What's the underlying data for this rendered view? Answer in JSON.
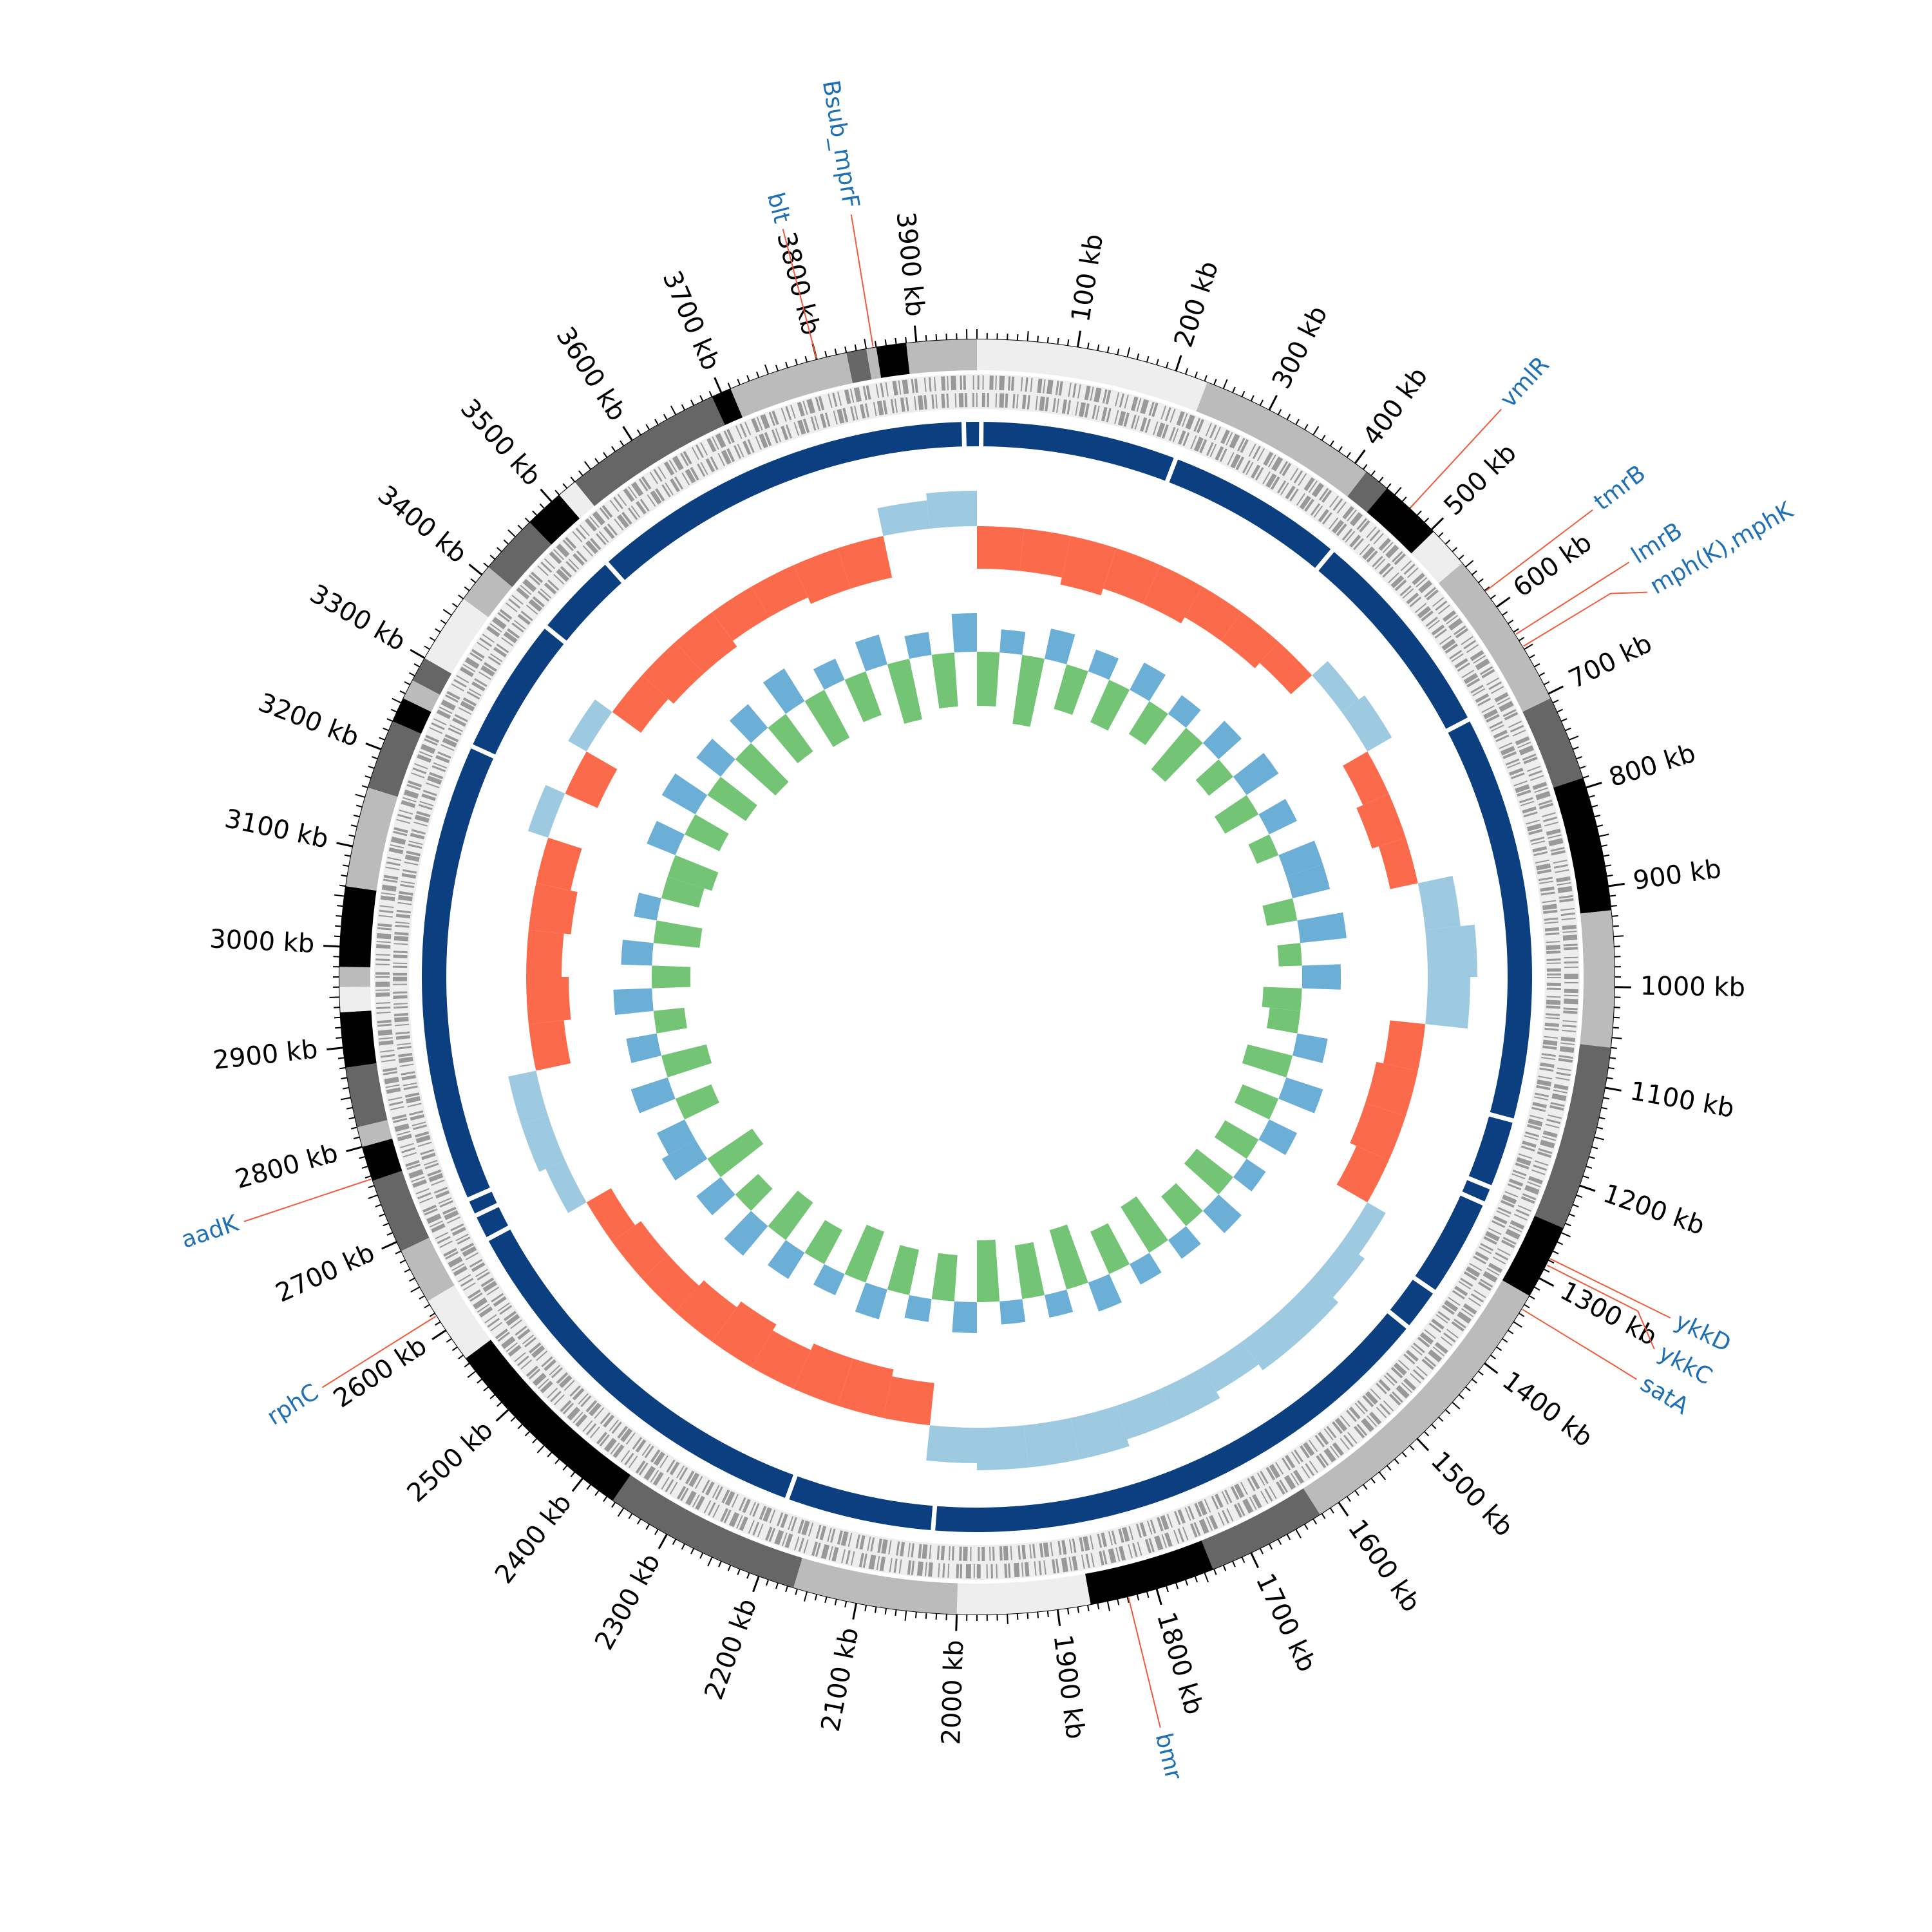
{
  "chart_data": {
    "type": "circular",
    "xlim": [
      0,
      3960
    ],
    "xticks": [
      {
        "value": 100,
        "label": "100 kb"
      },
      {
        "value": 200,
        "label": "200 kb"
      },
      {
        "value": 300,
        "label": "300 kb"
      },
      {
        "value": 400,
        "label": "400 kb"
      },
      {
        "value": 500,
        "label": "500 kb"
      },
      {
        "value": 600,
        "label": "600 kb"
      },
      {
        "value": 700,
        "label": "700 kb"
      },
      {
        "value": 800,
        "label": "800 kb"
      },
      {
        "value": 900,
        "label": "900 kb"
      },
      {
        "value": 1000,
        "label": "1000 kb"
      },
      {
        "value": 1100,
        "label": "1100 kb"
      },
      {
        "value": 1200,
        "label": "1200 kb"
      },
      {
        "value": 1300,
        "label": "1300 kb"
      },
      {
        "value": 1400,
        "label": "1400 kb"
      },
      {
        "value": 1500,
        "label": "1500 kb"
      },
      {
        "value": 1600,
        "label": "1600 kb"
      },
      {
        "value": 1700,
        "label": "1700 kb"
      },
      {
        "value": 1800,
        "label": "1800 kb"
      },
      {
        "value": 1900,
        "label": "1900 kb"
      },
      {
        "value": 2000,
        "label": "2000 kb"
      },
      {
        "value": 2100,
        "label": "2100 kb"
      },
      {
        "value": 2200,
        "label": "2200 kb"
      },
      {
        "value": 2300,
        "label": "2300 kb"
      },
      {
        "value": 2400,
        "label": "2400 kb"
      },
      {
        "value": 2500,
        "label": "2500 kb"
      },
      {
        "value": 2600,
        "label": "2600 kb"
      },
      {
        "value": 2700,
        "label": "2700 kb"
      },
      {
        "value": 2800,
        "label": "2800 kb"
      },
      {
        "value": 2900,
        "label": "2900 kb"
      },
      {
        "value": 3000,
        "label": "3000 kb"
      },
      {
        "value": 3100,
        "label": "3100 kb"
      },
      {
        "value": 3200,
        "label": "3200 kb"
      },
      {
        "value": 3300,
        "label": "3300 kb"
      },
      {
        "value": 3400,
        "label": "3400 kb"
      },
      {
        "value": 3500,
        "label": "3500 kb"
      },
      {
        "value": 3600,
        "label": "3600 kb"
      },
      {
        "value": 3700,
        "label": "3700 kb"
      },
      {
        "value": 3800,
        "label": "3800 kb"
      },
      {
        "value": 3900,
        "label": "3900 kb"
      }
    ],
    "minor_tick_step": 10,
    "contigs": [
      {
        "start": 0,
        "end": 233,
        "color": "#eeeeee"
      },
      {
        "start": 233,
        "end": 414,
        "color": "#bbbbbb"
      },
      {
        "start": 414,
        "end": 440,
        "color": "#666666"
      },
      {
        "start": 440,
        "end": 503,
        "color": "#000000"
      },
      {
        "start": 503,
        "end": 545,
        "color": "#eeeeee"
      },
      {
        "start": 545,
        "end": 705,
        "color": "#bbbbbb"
      },
      {
        "start": 705,
        "end": 790,
        "color": "#666666"
      },
      {
        "start": 790,
        "end": 924,
        "color": "#000000"
      },
      {
        "start": 924,
        "end": 1060,
        "color": "#bbbbbb"
      },
      {
        "start": 1060,
        "end": 1245,
        "color": "#666666"
      },
      {
        "start": 1245,
        "end": 1320,
        "color": "#000000"
      },
      {
        "start": 1320,
        "end": 1622,
        "color": "#bbbbbb"
      },
      {
        "start": 1622,
        "end": 1741,
        "color": "#666666"
      },
      {
        "start": 1741,
        "end": 1867,
        "color": "#000000"
      },
      {
        "start": 1867,
        "end": 2000,
        "color": "#eeeeee"
      },
      {
        "start": 2000,
        "end": 2164,
        "color": "#bbbbbb"
      },
      {
        "start": 2164,
        "end": 2363,
        "color": "#666666"
      },
      {
        "start": 2363,
        "end": 2566,
        "color": "#000000"
      },
      {
        "start": 2566,
        "end": 2634,
        "color": "#eeeeee"
      },
      {
        "start": 2634,
        "end": 2690,
        "color": "#bbbbbb"
      },
      {
        "start": 2690,
        "end": 2765,
        "color": "#666666"
      },
      {
        "start": 2765,
        "end": 2800,
        "color": "#000000"
      },
      {
        "start": 2800,
        "end": 2820,
        "color": "#bbbbbb"
      },
      {
        "start": 2820,
        "end": 2880,
        "color": "#666666"
      },
      {
        "start": 2880,
        "end": 2935,
        "color": "#000000"
      },
      {
        "start": 2935,
        "end": 2960,
        "color": "#eeeeee"
      },
      {
        "start": 2960,
        "end": 2980,
        "color": "#bbbbbb"
      },
      {
        "start": 2980,
        "end": 3060,
        "color": "#000000"
      },
      {
        "start": 3060,
        "end": 3160,
        "color": "#bbbbbb"
      },
      {
        "start": 3160,
        "end": 3230,
        "color": "#666666"
      },
      {
        "start": 3230,
        "end": 3255,
        "color": "#000000"
      },
      {
        "start": 3255,
        "end": 3275,
        "color": "#bbbbbb"
      },
      {
        "start": 3275,
        "end": 3300,
        "color": "#666666"
      },
      {
        "start": 3300,
        "end": 3370,
        "color": "#eeeeee"
      },
      {
        "start": 3370,
        "end": 3410,
        "color": "#bbbbbb"
      },
      {
        "start": 3410,
        "end": 3470,
        "color": "#666666"
      },
      {
        "start": 3470,
        "end": 3510,
        "color": "#000000"
      },
      {
        "start": 3510,
        "end": 3530,
        "color": "#eeeeee"
      },
      {
        "start": 3530,
        "end": 3690,
        "color": "#666666"
      },
      {
        "start": 3690,
        "end": 3710,
        "color": "#000000"
      },
      {
        "start": 3710,
        "end": 3830,
        "color": "#bbbbbb"
      },
      {
        "start": 3830,
        "end": 3850,
        "color": "#666666"
      },
      {
        "start": 3850,
        "end": 3860,
        "color": "#bbbbbb"
      },
      {
        "start": 3860,
        "end": 3890,
        "color": "#000000"
      },
      {
        "start": 3890,
        "end": 3960,
        "color": "#bbbbbb"
      }
    ],
    "ring_color": "#0b3f80",
    "ring_gaps": [
      5,
      231,
      438,
      686,
      1155,
      1235,
      1255,
      1370,
      1420,
      2030,
      2200,
      2660,
      2690,
      2710,
      3240,
      3400,
      3500,
      3945
    ],
    "gc_content": {
      "positive_color": "#9ecae1",
      "negative_color": "#fb6a4a",
      "values": [
        -0.6,
        -0.6,
        -0.7,
        -0.6,
        -0.6,
        -0.5,
        -0.5,
        -0.4,
        0.3,
        0.4,
        -0.4,
        -0.5,
        -0.4,
        0.5,
        0.7,
        0.6,
        -0.5,
        -0.6,
        -0.6,
        -0.5,
        0.3,
        0.4,
        0.5,
        0.5,
        0.4,
        0.5,
        0.5,
        0.6,
        0.6,
        0.6,
        0.5,
        -0.6,
        -0.7,
        -0.7,
        -0.6,
        -0.7,
        -0.6,
        -0.5,
        -0.5,
        -0.4,
        0.3,
        0.4,
        0.4,
        -0.5,
        -0.6,
        -0.5,
        -0.6,
        -0.5,
        0.3,
        -0.5,
        0.3,
        -0.5,
        -0.6,
        -0.6,
        -0.5,
        -0.5,
        -0.6,
        -0.6,
        0.4,
        0.5
      ]
    },
    "gc_skew": {
      "positive_color": "#6baed6",
      "negative_color": "#74c476",
      "values": [
        -0.7,
        0.3,
        -0.9,
        0.4,
        -0.6,
        0.3,
        -0.6,
        0.4,
        -0.5,
        0.3,
        -0.7,
        0.4,
        -0.4,
        0.5,
        -0.5,
        0.4,
        -0.3,
        0.5,
        0.5,
        -0.4,
        0.6,
        -0.3,
        0.5,
        -0.5,
        -0.4,
        0.4,
        -0.6,
        0.5,
        -0.5,
        0.4,
        -0.5,
        0.3,
        -0.6,
        0.4,
        -0.5,
        0.3,
        -0.7,
        0.3,
        -0.6,
        0.4,
        -0.8,
        0.3,
        -0.7,
        0.3,
        -0.8,
        0.4,
        -0.6,
        0.3,
        -0.6,
        0.4,
        -0.7,
        0.3,
        -0.5,
        0.4,
        -0.6,
        0.5,
        -0.4,
        0.4,
        -0.7,
        0.5,
        0.4,
        -0.5,
        0.5,
        -0.6,
        0.4,
        -0.4,
        0.5,
        -0.5,
        0.4,
        -0.6,
        0.3,
        -0.5,
        -0.6,
        0.4,
        -0.5,
        0.5,
        -0.6,
        0.4,
        -0.7,
        0.4,
        -0.6,
        0.5,
        -0.7,
        0.3,
        -0.6,
        0.4,
        -0.8,
        0.3,
        -0.7,
        0.5
      ]
    },
    "gene_label_color": "#1f6fb4",
    "gene_line_color": "#f05a3c",
    "genes": [
      {
        "name": "vmlR",
        "position": 470
      },
      {
        "name": "tmrB",
        "position": 581
      },
      {
        "name": "lmrB",
        "position": 633
      },
      {
        "name": "mph(K),mphK",
        "position": 647
      },
      {
        "name": "ykkD",
        "position": 1278
      },
      {
        "name": "ykkC",
        "position": 1285
      },
      {
        "name": "satA",
        "position": 1335
      },
      {
        "name": "bmr",
        "position": 1829
      },
      {
        "name": "rphC",
        "position": 2617
      },
      {
        "name": "aadK",
        "position": 2767
      },
      {
        "name": "blt",
        "position": 3800
      },
      {
        "name": "Bsub_mprF",
        "position": 3857
      }
    ]
  }
}
